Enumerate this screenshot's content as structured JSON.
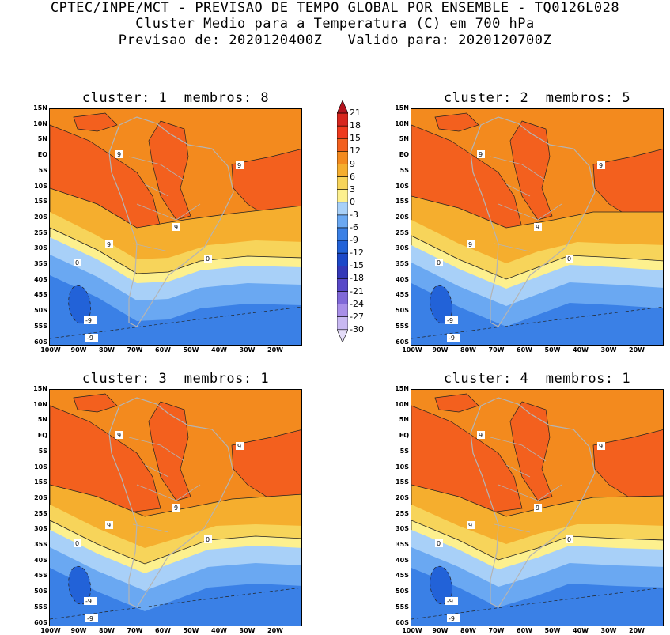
{
  "header": {
    "line1": "CPTEC/INPE/MCT - PREVISAO DE TEMPO GLOBAL POR ENSEMBLE - TQ0126L028",
    "line2": "Cluster Medio para a Temperatura (C) em 700 hPa",
    "line3": "Previsao de: 2020120400Z   Valido para: 2020120700Z"
  },
  "panels": [
    {
      "title": "cluster: 1  membros: 8"
    },
    {
      "title": "cluster: 2  membros: 5"
    },
    {
      "title": "cluster: 3  membros: 1"
    },
    {
      "title": "cluster: 4  membros: 1"
    }
  ],
  "lat_ticks": [
    "15N",
    "10N",
    "5N",
    "EQ",
    "5S",
    "10S",
    "15S",
    "20S",
    "25S",
    "30S",
    "35S",
    "40S",
    "45S",
    "50S",
    "55S",
    "60S"
  ],
  "lon_ticks": [
    "100W",
    "90W",
    "80W",
    "70W",
    "60W",
    "50W",
    "40W",
    "30W",
    "20W"
  ],
  "contour_labels": [
    "9",
    "0",
    "-9"
  ],
  "colorbar": {
    "labels": [
      "21",
      "18",
      "15",
      "12",
      "9",
      "6",
      "3",
      "0",
      "-3",
      "-6",
      "-9",
      "-12",
      "-15",
      "-18",
      "-21",
      "-24",
      "-27",
      "-30"
    ],
    "colors": [
      "#b4141e",
      "#d7261e",
      "#ef3a1e",
      "#f3601e",
      "#f38a1e",
      "#f5ae2e",
      "#f7d45a",
      "#fdf08e",
      "#a8d0f8",
      "#6aa8f2",
      "#3a80e6",
      "#2262d8",
      "#1c48c8",
      "#3438b8",
      "#5848c8",
      "#8068d8",
      "#a88ee8",
      "#c8b8f2",
      "#e4dcf8"
    ]
  }
}
